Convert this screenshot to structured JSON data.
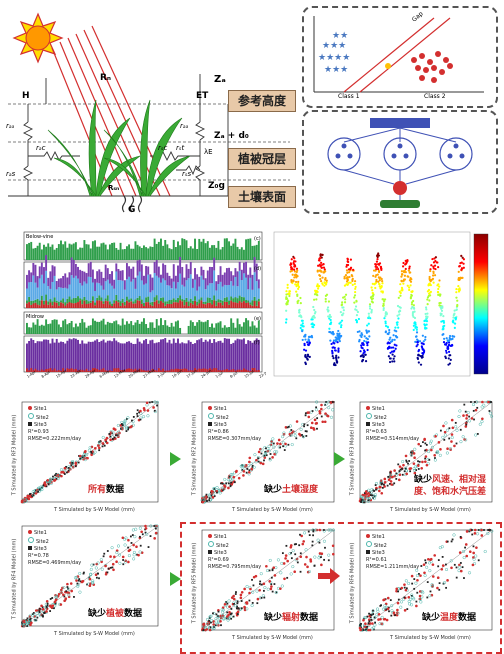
{
  "schematic": {
    "labels": {
      "Rn": "Rₙ",
      "H": "H",
      "ET": "ET",
      "G": "G",
      "Rsn": "Rₛₙ",
      "raa": "rₐₐ",
      "rac": "rₐc",
      "ras": "rₐs",
      "rsc": "rₛc",
      "rss": "rₛs",
      "rst": "rₛt",
      "lE": "λE",
      "Za": "Zₐ",
      "Zd0": "Zₐ + d₀",
      "Zog": "Z₀g"
    },
    "boxes": {
      "ref_height": "参考高度",
      "canopy": "植被冠层",
      "soil": "土壤表面"
    },
    "classifier": {
      "class1": "Class 1",
      "class2": "Class 2",
      "gap": "Gap"
    }
  },
  "flux_chart": {
    "panel_labels": [
      "(c)",
      "(d)",
      "(e)",
      "(f)"
    ],
    "section_titles": [
      "Below-vine",
      "Midrow"
    ],
    "x_ticks": [
      "1-Apr",
      "8-Apr",
      "15-Apr",
      "22-Apr",
      "29-Apr",
      "6-May",
      "13-May",
      "20-May",
      "27-May",
      "3-Jun",
      "10-Jun",
      "17-Jun",
      "24-Jun",
      "1-Jul",
      "8-Jul",
      "15-Jul",
      "22-Jul"
    ],
    "ylabel_top": "Rₙ (MJ m⁻² d⁻¹)",
    "ylabel_flux": "Flux partitioning"
  },
  "scatter_panels": [
    {
      "caption_parts": [
        {
          "t": "所有",
          "red": true
        },
        {
          "t": "数据",
          "red": false
        }
      ],
      "r2": "R²=0.93",
      "rmse": "RMSE=0.222mm/day",
      "ylabel": "T Simulated by RF3 Model (mm)"
    },
    {
      "caption_parts": [
        {
          "t": "缺少",
          "red": false
        },
        {
          "t": "土壤湿度",
          "red": true
        }
      ],
      "r2": "R²=0.86",
      "rmse": "RMSE=0.307mm/day",
      "ylabel": "T Simulated by RF2 Model (mm)"
    },
    {
      "caption_parts": [
        {
          "t": "缺少",
          "red": false
        },
        {
          "t": "风速、相对湿",
          "red": true
        }
      ],
      "caption2_parts": [
        {
          "t": "度、饱和水汽压差",
          "red": true
        }
      ],
      "r2": "R²=0.63",
      "rmse": "RMSE=0.514mm/day",
      "ylabel": "T Simulated by RF3 Model (mm)"
    },
    {
      "caption_parts": [
        {
          "t": "缺少",
          "red": false
        },
        {
          "t": "植被",
          "red": true
        },
        {
          "t": "数据",
          "red": false
        }
      ],
      "r2": "R²=0.78",
      "rmse": "RMSE=0.469mm/day",
      "ylabel": "T Simulated by RF4 Model (mm)"
    },
    {
      "caption_parts": [
        {
          "t": "缺少",
          "red": false
        },
        {
          "t": "辐射",
          "red": true
        },
        {
          "t": "数据",
          "red": false
        }
      ],
      "r2": "R²=0.69",
      "rmse": "RMSE=0.795mm/day",
      "ylabel": "T Simulated by RF5 Model (mm)"
    },
    {
      "caption_parts": [
        {
          "t": "缺少",
          "red": false
        },
        {
          "t": "温度",
          "red": true
        },
        {
          "t": "数据",
          "red": false
        }
      ],
      "r2": "R²=0.61",
      "rmse": "RMSE=1.211mm/day",
      "ylabel": "T Simulated by RF6 Model (mm)"
    }
  ],
  "scatter_common": {
    "xlabel": "T Simulated by S-W Model (mm)",
    "legend": [
      "Site1",
      "Site2",
      "Site3"
    ]
  },
  "colors": {
    "site1": "#d32f2f",
    "site2": "#4db6ac",
    "site3": "#222222",
    "arrow_green": "#3aaa35",
    "arrow_red": "#d32f2f",
    "box_fill": "#e8c9a8"
  }
}
